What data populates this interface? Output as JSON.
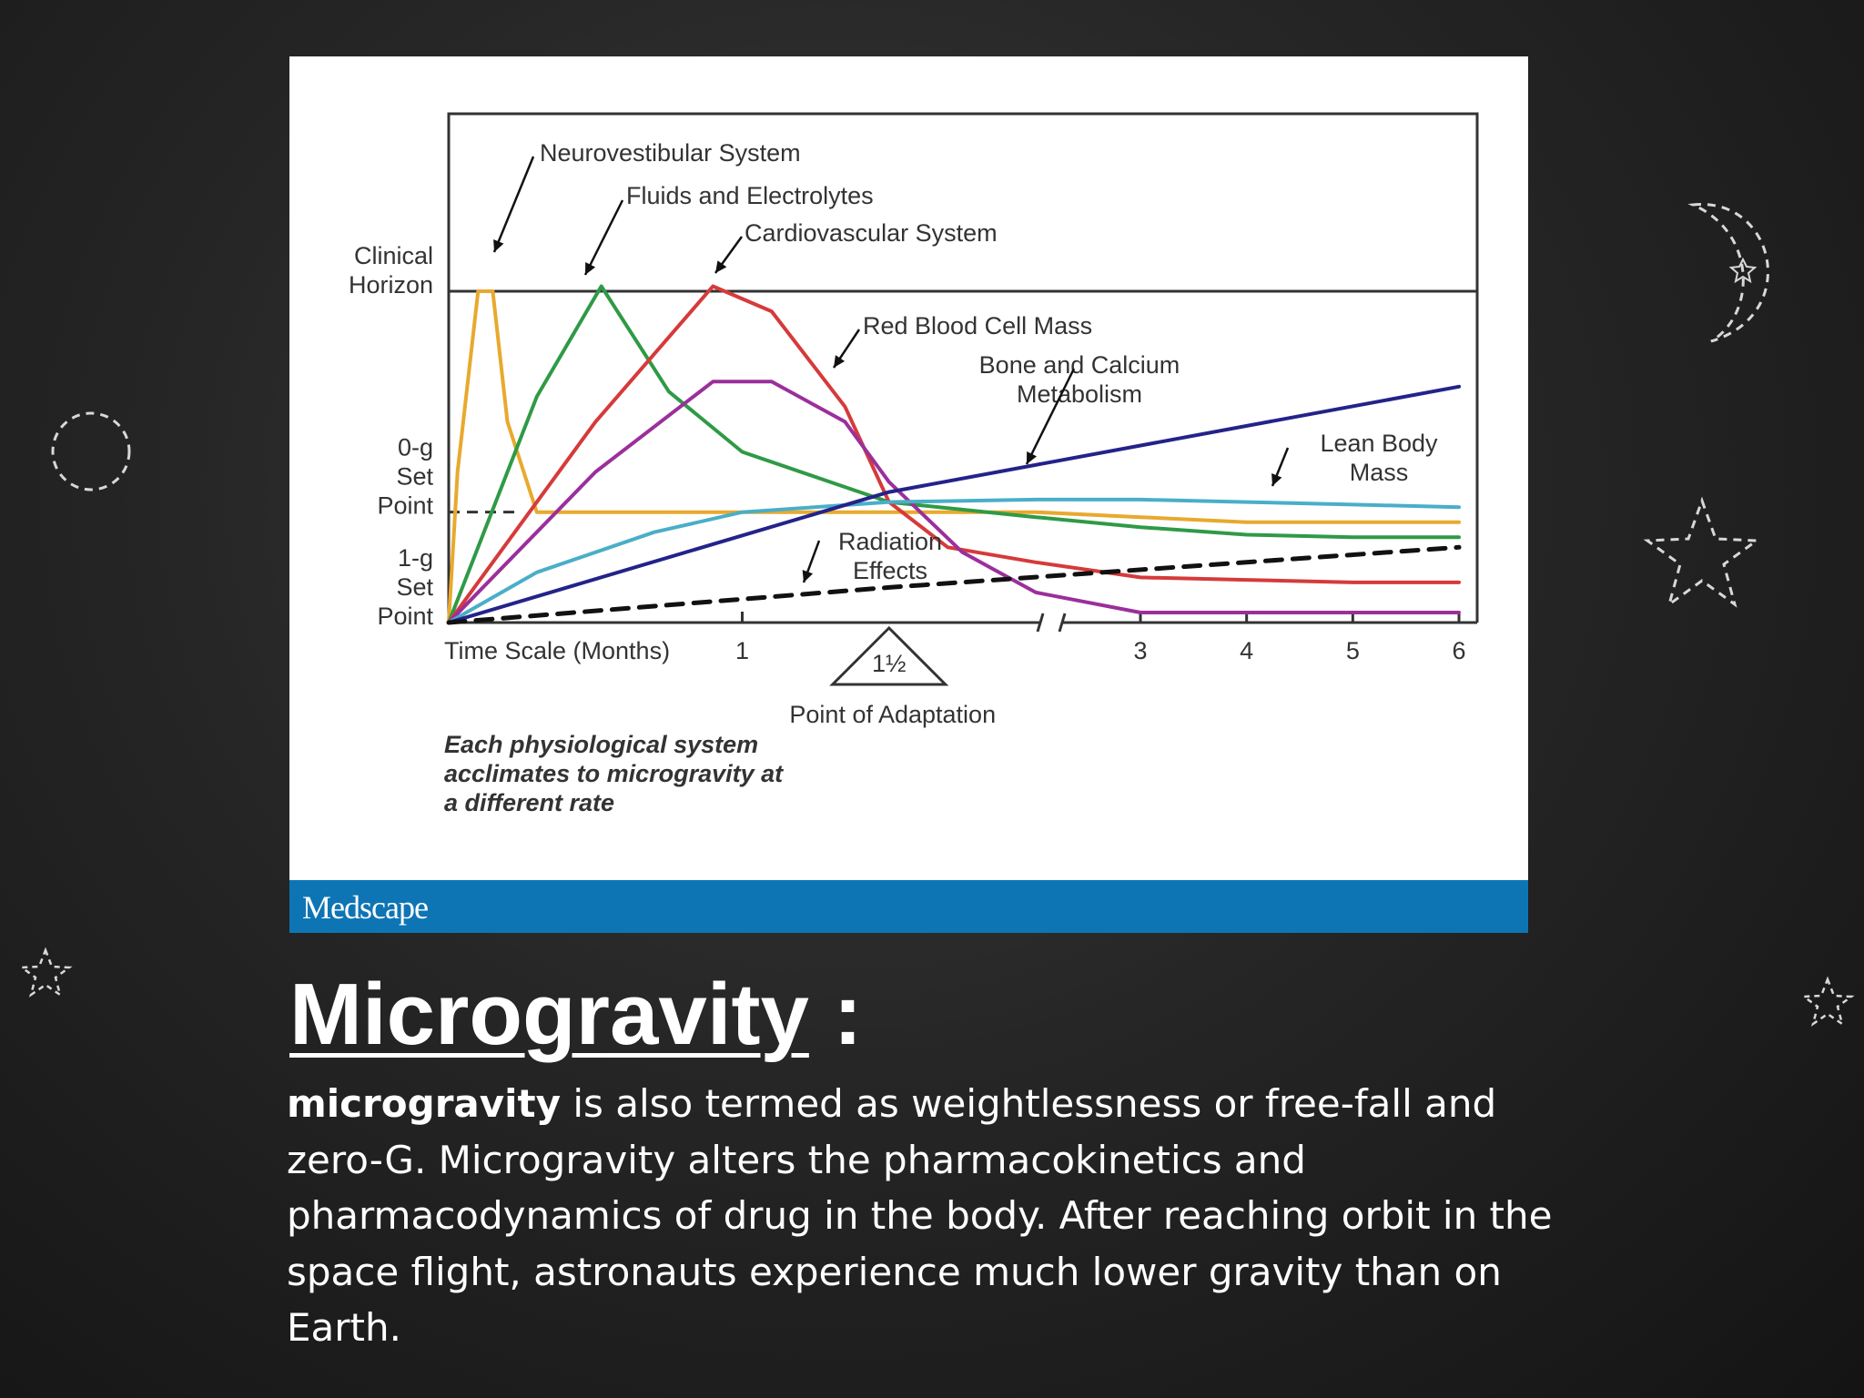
{
  "slide": {
    "heading": "Microgravity",
    "heading_suffix": " :",
    "body_lead": "microgravity",
    "body_rest": " is also termed as weightlessness or free-fall and zero-G. Microgravity alters the pharmacokinetics and pharmacodynamics of drug in the body. After reaching orbit in the space flight, astronauts experience much lower gravity than on Earth."
  },
  "figure": {
    "footer_brand": "Medscape",
    "note_lines": [
      "Each physiological system",
      "acclimates to microgravity at",
      "a different rate"
    ]
  },
  "chart_data": {
    "type": "line",
    "xlabel": "Time Scale (Months)",
    "x_ticks": [
      {
        "value": 1,
        "label": "1"
      },
      {
        "value": 1.5,
        "label": "1½"
      },
      {
        "value": 3,
        "label": "3"
      },
      {
        "value": 4,
        "label": "4"
      },
      {
        "value": 5,
        "label": "5"
      },
      {
        "value": 6,
        "label": "6"
      }
    ],
    "xlim": [
      0,
      6
    ],
    "axis_break_after": 2,
    "ylim": [
      0,
      1
    ],
    "y_levels": [
      {
        "label": [
          "1-g",
          "Set",
          "Point"
        ],
        "value": 0
      },
      {
        "label": [
          "0-g",
          "Set",
          "Point"
        ],
        "value": 0.22
      },
      {
        "label": [
          "Clinical",
          "Horizon"
        ],
        "value": 0.66
      }
    ],
    "marker": {
      "value": 1.5,
      "label": "Point of Adaptation"
    },
    "series": [
      {
        "name": "Neurovestibular System",
        "color": "#e8a92e",
        "points": [
          [
            0,
            0
          ],
          [
            0.03,
            0.3
          ],
          [
            0.1,
            0.66
          ],
          [
            0.15,
            0.66
          ],
          [
            0.2,
            0.4
          ],
          [
            0.3,
            0.22
          ],
          [
            1,
            0.22
          ],
          [
            2,
            0.22
          ],
          [
            3,
            0.21
          ],
          [
            4,
            0.2
          ],
          [
            5,
            0.2
          ],
          [
            6,
            0.2
          ]
        ]
      },
      {
        "name": "Fluids and Electrolytes",
        "color": "#2f9a46",
        "points": [
          [
            0,
            0
          ],
          [
            0.3,
            0.45
          ],
          [
            0.52,
            0.67
          ],
          [
            0.75,
            0.46
          ],
          [
            1,
            0.34
          ],
          [
            1.3,
            0.28
          ],
          [
            1.5,
            0.24
          ],
          [
            2,
            0.21
          ],
          [
            3,
            0.19
          ],
          [
            4,
            0.175
          ],
          [
            5,
            0.17
          ],
          [
            6,
            0.17
          ]
        ]
      },
      {
        "name": "Cardiovascular System",
        "color": "#d63a3a",
        "points": [
          [
            0,
            0
          ],
          [
            0.5,
            0.4
          ],
          [
            0.9,
            0.67
          ],
          [
            1.1,
            0.62
          ],
          [
            1.35,
            0.43
          ],
          [
            1.5,
            0.24
          ],
          [
            1.7,
            0.15
          ],
          [
            2,
            0.12
          ],
          [
            3,
            0.09
          ],
          [
            4,
            0.085
          ],
          [
            5,
            0.08
          ],
          [
            6,
            0.08
          ]
        ]
      },
      {
        "name": "Red Blood Cell Mass",
        "color": "#9b2f9b",
        "points": [
          [
            0,
            0
          ],
          [
            0.5,
            0.3
          ],
          [
            0.9,
            0.48
          ],
          [
            1.1,
            0.48
          ],
          [
            1.35,
            0.4
          ],
          [
            1.5,
            0.28
          ],
          [
            1.75,
            0.14
          ],
          [
            2,
            0.06
          ],
          [
            3,
            0.02
          ],
          [
            4,
            0.02
          ],
          [
            5,
            0.02
          ],
          [
            6,
            0.02
          ]
        ]
      },
      {
        "name": "Lean Body Mass",
        "color": "#4aaec8",
        "points": [
          [
            0,
            0
          ],
          [
            0.3,
            0.1
          ],
          [
            0.7,
            0.18
          ],
          [
            1,
            0.22
          ],
          [
            1.5,
            0.24
          ],
          [
            2,
            0.245
          ],
          [
            3,
            0.245
          ],
          [
            4,
            0.24
          ],
          [
            5,
            0.235
          ],
          [
            6,
            0.23
          ]
        ]
      },
      {
        "name": "Bone and Calcium Metabolism",
        "color": "#23238a",
        "points": [
          [
            0,
            0
          ],
          [
            1.5,
            0.26
          ],
          [
            6,
            0.47
          ]
        ]
      },
      {
        "name": "Radiation Effects",
        "color": "#111111",
        "dashed": true,
        "points": [
          [
            0,
            0
          ],
          [
            1.5,
            0.07
          ],
          [
            6,
            0.15
          ]
        ]
      }
    ],
    "annotations": [
      {
        "text": [
          "Neurovestibular System"
        ]
      },
      {
        "text": [
          "Fluids and Electrolytes"
        ]
      },
      {
        "text": [
          "Cardiovascular System"
        ]
      },
      {
        "text": [
          "Red Blood Cell Mass"
        ]
      },
      {
        "text": [
          "Bone and Calcium",
          "Metabolism"
        ]
      },
      {
        "text": [
          "Lean Body",
          "Mass"
        ]
      },
      {
        "text": [
          "Radiation",
          "Effects"
        ]
      }
    ]
  }
}
